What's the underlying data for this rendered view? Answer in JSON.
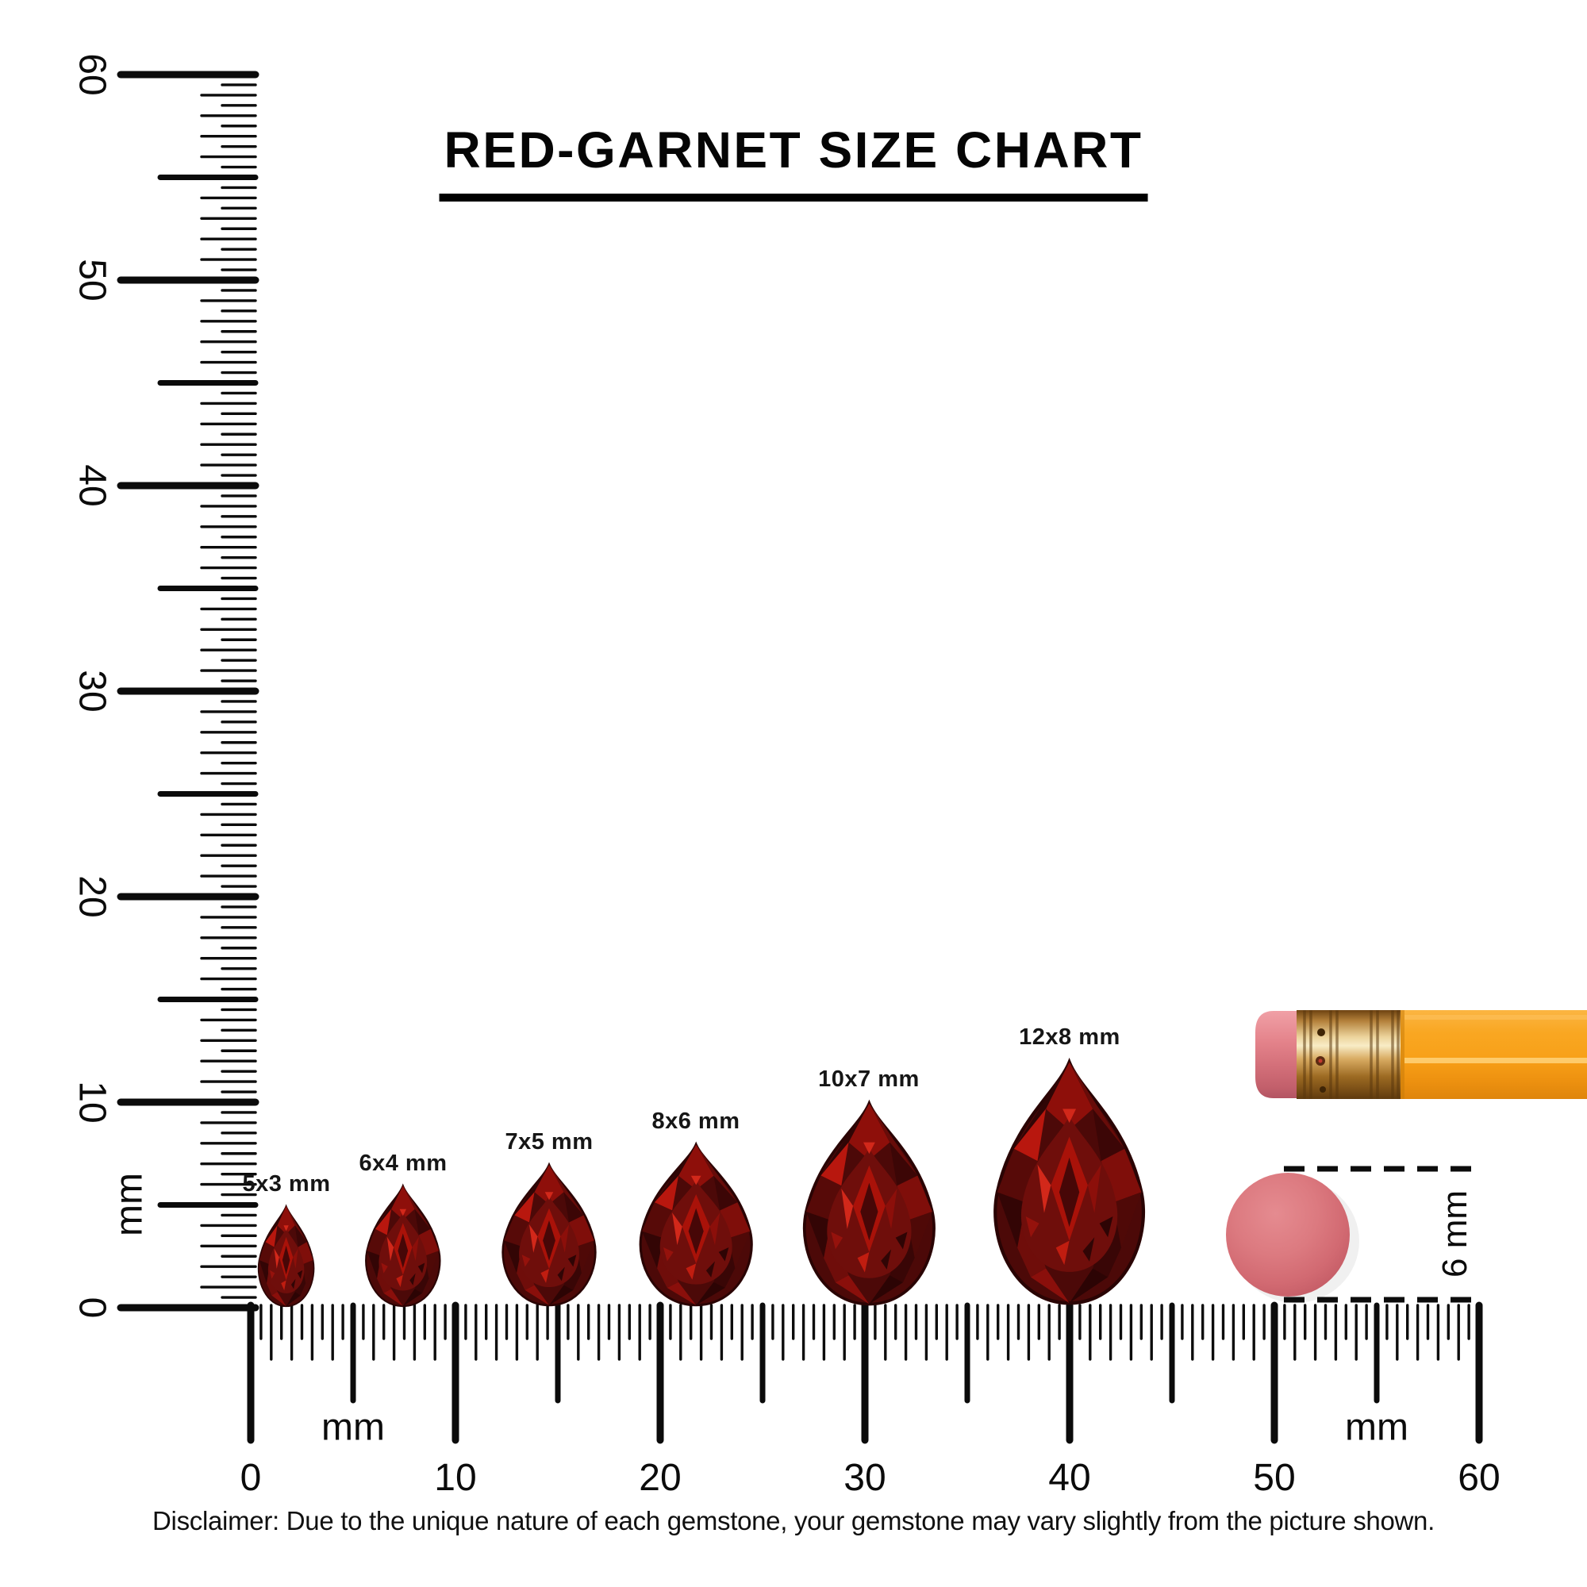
{
  "title": "RED-GARNET SIZE CHART",
  "disclaimer": "Disclaimer: Due to the unique nature of each gemstone, your gemstone may vary slightly from the picture shown.",
  "chart_data": {
    "type": "size-chart",
    "subject": "Red Garnet",
    "cut": "pear",
    "unit": "mm",
    "gems": [
      {
        "label": "5x3 mm",
        "length_mm": 5,
        "width_mm": 3
      },
      {
        "label": "6x4 mm",
        "length_mm": 6,
        "width_mm": 4
      },
      {
        "label": "7x5 mm",
        "length_mm": 7,
        "width_mm": 5
      },
      {
        "label": "8x6 mm",
        "length_mm": 8,
        "width_mm": 6
      },
      {
        "label": "10x7 mm",
        "length_mm": 10,
        "width_mm": 7
      },
      {
        "label": "12x8 mm",
        "length_mm": 12,
        "width_mm": 8
      }
    ],
    "vertical_ruler": {
      "unit_label": "mm",
      "range_mm": [
        0,
        60
      ],
      "major_tick_labels": [
        0,
        10,
        20,
        30,
        40,
        50,
        60
      ],
      "minor_step_mm": 0.5
    },
    "horizontal_ruler": {
      "unit_labels": [
        "mm",
        "mm"
      ],
      "range_mm": [
        0,
        60
      ],
      "major_tick_labels": [
        0,
        10,
        20,
        30,
        40,
        50,
        60
      ],
      "minor_step_mm": 0.5
    },
    "reference_scale": {
      "object": "pencil eraser",
      "diameter_label": "6 mm"
    }
  },
  "colors": {
    "ink": "#0b0b0b",
    "garnet_dark": "#300505",
    "garnet_mid": "#6f0e0b",
    "garnet_bright": "#c81e12",
    "eraser_pink": "#d76e74",
    "pencil_orange": "#f7a21c",
    "ferrule_gold": "#d8ab62"
  }
}
